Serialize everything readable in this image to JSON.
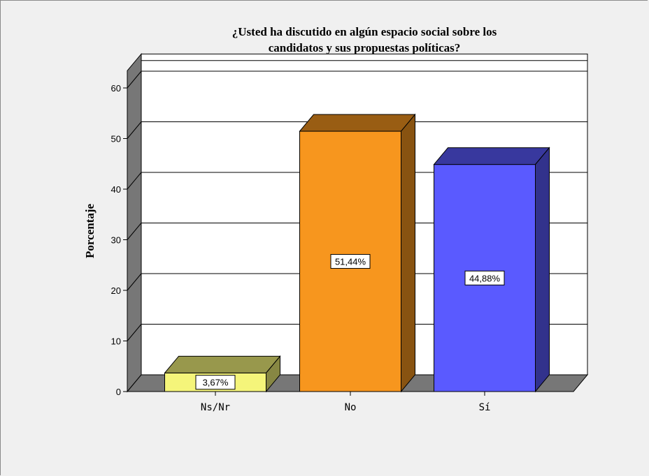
{
  "chart_data": {
    "type": "bar",
    "title_lines": [
      "¿Usted ha discutido en algún espacio social sobre los",
      "candidatos y sus propuestas políticas?"
    ],
    "xlabel": "",
    "ylabel": "Porcentaje",
    "ylim": [
      0,
      60
    ],
    "yticks": [
      0,
      10,
      20,
      30,
      40,
      50,
      60
    ],
    "grid": true,
    "legend": "none",
    "categories": [
      "Ns/Nr",
      "No",
      "Sí"
    ],
    "values": [
      3.67,
      51.44,
      44.88
    ],
    "data_labels": [
      "3,67%",
      "51,44%",
      "44,88%"
    ],
    "colors": [
      "#f5f57a",
      "#f7961e",
      "#5a5aff"
    ]
  }
}
